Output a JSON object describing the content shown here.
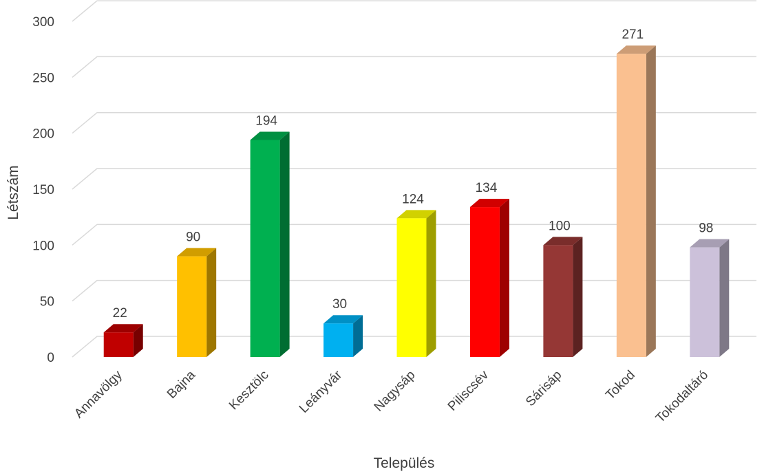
{
  "chart_data": {
    "type": "bar",
    "style": "3d-column",
    "categories": [
      "Annavölgy",
      "Bajna",
      "Kesztölc",
      "Leányvár",
      "Nagysáp",
      "Piliscsév",
      "Sárisáp",
      "Tokod",
      "Tokodaltáró"
    ],
    "values": [
      22,
      90,
      194,
      30,
      124,
      134,
      100,
      271,
      98
    ],
    "data_labels": [
      "22",
      "90",
      "194",
      "30",
      "124",
      "134",
      "100",
      "271",
      "98"
    ],
    "colors": [
      "#C00000",
      "#FFC000",
      "#00B050",
      "#00B0F0",
      "#FFFF00",
      "#FF0000",
      "#953735",
      "#FAC090",
      "#CCC1DA"
    ],
    "xlabel": "Település",
    "ylabel": "Létszám",
    "ylim": [
      0,
      300
    ],
    "yticks": [
      0,
      50,
      100,
      150,
      200,
      250,
      300
    ],
    "ytick_labels": [
      "0",
      "50",
      "100",
      "150",
      "200",
      "250",
      "300"
    ],
    "grid": true,
    "legend": "none"
  }
}
